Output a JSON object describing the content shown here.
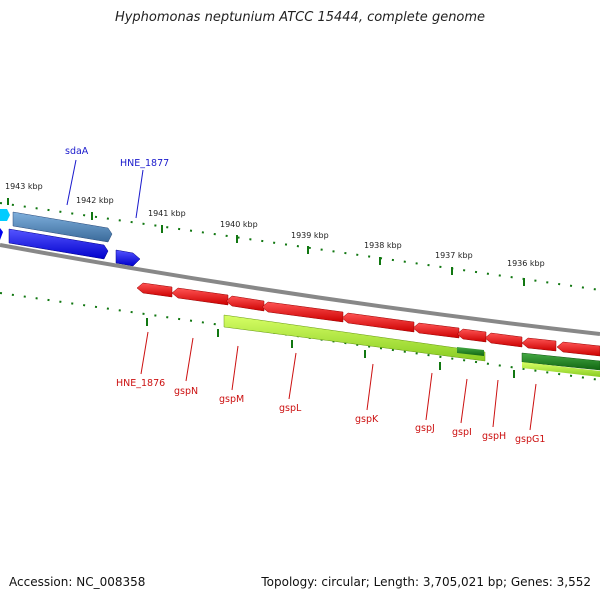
{
  "title": "Hyphomonas neptunium ATCC 15444, complete genome",
  "footer": {
    "accession": "Accession: NC_008358",
    "stats": "Topology: circular; Length: 3,705,021 bp; Genes: 3,552"
  },
  "ticks": [
    "1943 kbp",
    "1942 kbp",
    "1941 kbp",
    "1940 kbp",
    "1939 kbp",
    "1938 kbp",
    "1937 kbp",
    "1936 kbp"
  ],
  "genes_top": [
    "sdaA",
    "HNE_1877"
  ],
  "genes_bottom": [
    "HNE_1876",
    "gspN",
    "gspM",
    "gspL",
    "gspK",
    "gspJ",
    "gspI",
    "gspH",
    "gspG1"
  ],
  "colors": {
    "forward_gene": "#0000ee",
    "forward_gene_light": "#4a86c0",
    "reverse_gene": "#ee0000",
    "reverse_gene_light": "#aaee33",
    "rna_gene": "#228822",
    "backbone": "#888888",
    "tick": "#117711"
  }
}
